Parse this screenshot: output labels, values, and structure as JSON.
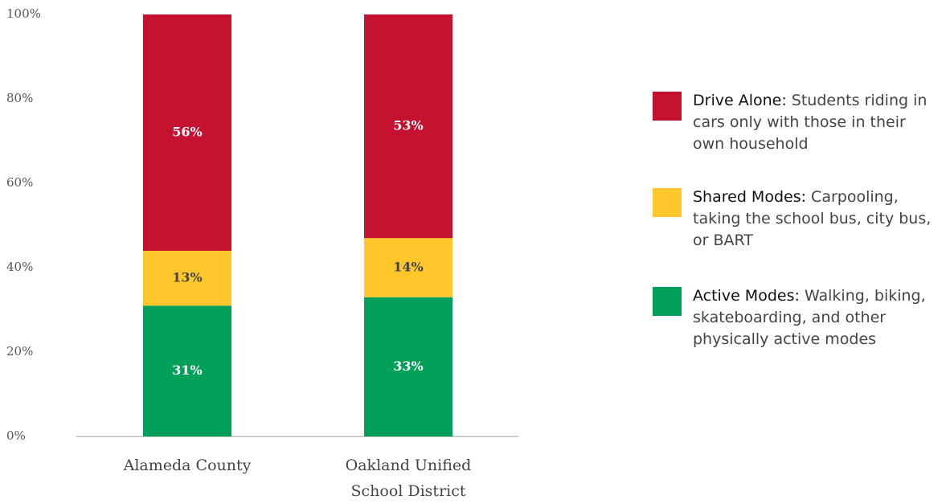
{
  "chart_data": {
    "type": "stacked_bar",
    "categories": [
      "Alameda County",
      "Oakland Unified School District"
    ],
    "series": [
      {
        "name": "Active Modes:",
        "description": "Walking, biking, skateboarding, and other physically active modes",
        "color": "#00a05a",
        "label_color": "#ffffff",
        "values": [
          31,
          33
        ],
        "value_labels": [
          "31%",
          "33%"
        ]
      },
      {
        "name": "Shared Modes:",
        "description": "Carpooling, taking the school bus, city bus, or BART",
        "color": "#ffc72c",
        "label_color": "#444444",
        "values": [
          13,
          14
        ],
        "value_labels": [
          "13%",
          "14%"
        ]
      },
      {
        "name": "Drive Alone:",
        "description": "Students riding in cars only with those in their own household",
        "color": "#c41230",
        "label_color": "#ffffff",
        "values": [
          56,
          53
        ],
        "value_labels": [
          "56%",
          "53%"
        ]
      }
    ],
    "ylim": [
      0,
      100
    ],
    "yticks": [
      {
        "value": 0,
        "label": "0%"
      },
      {
        "value": 20,
        "label": "20%"
      },
      {
        "value": 40,
        "label": "40%"
      },
      {
        "value": 60,
        "label": "60%"
      },
      {
        "value": 80,
        "label": "80%"
      },
      {
        "value": 100,
        "label": "100%"
      }
    ],
    "grid": false,
    "legend": "right"
  }
}
